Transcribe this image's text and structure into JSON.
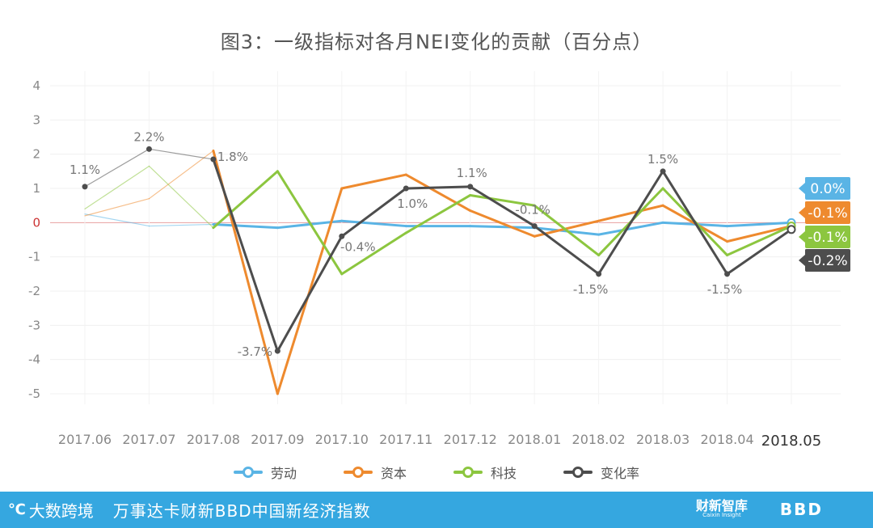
{
  "title": "图3：一级指标对各月NEI变化的贡献（百分点）",
  "colors": {
    "labor": "#5ab4e5",
    "capital": "#ee8a2e",
    "tech": "#8cc63f",
    "change": "#4d4d4d",
    "zero_line": "#e8a0a0",
    "axis_text": "#888888"
  },
  "legend": [
    {
      "key": "labor",
      "label": "劳动"
    },
    {
      "key": "capital",
      "label": "资本"
    },
    {
      "key": "tech",
      "label": "科技"
    },
    {
      "key": "change",
      "label": "变化率"
    }
  ],
  "end_labels": [
    {
      "key": "labor",
      "text": "0.0%"
    },
    {
      "key": "capital",
      "text": "-0.1%"
    },
    {
      "key": "tech",
      "text": "-0.1%"
    },
    {
      "key": "change",
      "text": "-0.2%"
    }
  ],
  "footer": {
    "logo_text": "大数跨境",
    "text": "万事达卡财新BBD中国新经济指数",
    "caixin": "财新智库",
    "caixin_sub": "Caixin Insight",
    "bbd": "BBD"
  },
  "chart_data": {
    "type": "line",
    "title": "图3：一级指标对各月NEI变化的贡献（百分点）",
    "categories": [
      "2017.06",
      "2017.07",
      "2017.08",
      "2017.09",
      "2017.10",
      "2017.11",
      "2017.12",
      "2018.01",
      "2018.02",
      "2018.03",
      "2018.04",
      "2018.05"
    ],
    "ylim": [
      -5,
      4
    ],
    "yticks": [
      4,
      3,
      2,
      1,
      0,
      -1,
      -2,
      -3,
      -4,
      -5
    ],
    "grid": true,
    "legend_position": "bottom",
    "series": [
      {
        "key": "labor",
        "name": "劳动",
        "values": [
          0.25,
          -0.1,
          -0.05,
          -0.15,
          0.05,
          -0.1,
          -0.1,
          -0.15,
          -0.35,
          0.0,
          -0.1,
          0.0
        ]
      },
      {
        "key": "capital",
        "name": "资本",
        "values": [
          0.2,
          0.7,
          2.1,
          -5.0,
          1.0,
          1.4,
          0.35,
          -0.4,
          0.05,
          0.5,
          -0.55,
          -0.1
        ]
      },
      {
        "key": "tech",
        "name": "科技",
        "values": [
          0.4,
          1.65,
          -0.15,
          1.5,
          -1.5,
          -0.3,
          0.8,
          0.5,
          -0.95,
          1.0,
          -0.95,
          -0.1
        ]
      },
      {
        "key": "change",
        "name": "变化率",
        "values": [
          1.05,
          2.15,
          1.85,
          -3.75,
          -0.4,
          1.0,
          1.05,
          -0.1,
          -1.5,
          1.5,
          -1.5,
          -0.2
        ]
      }
    ],
    "data_labels": [
      "1.1%",
      "2.2%",
      "1.8%",
      "-3.7%",
      "-0.4%",
      "1.0%",
      "1.1%",
      "-0.1%",
      "-1.5%",
      "1.5%",
      "-1.5%"
    ]
  }
}
